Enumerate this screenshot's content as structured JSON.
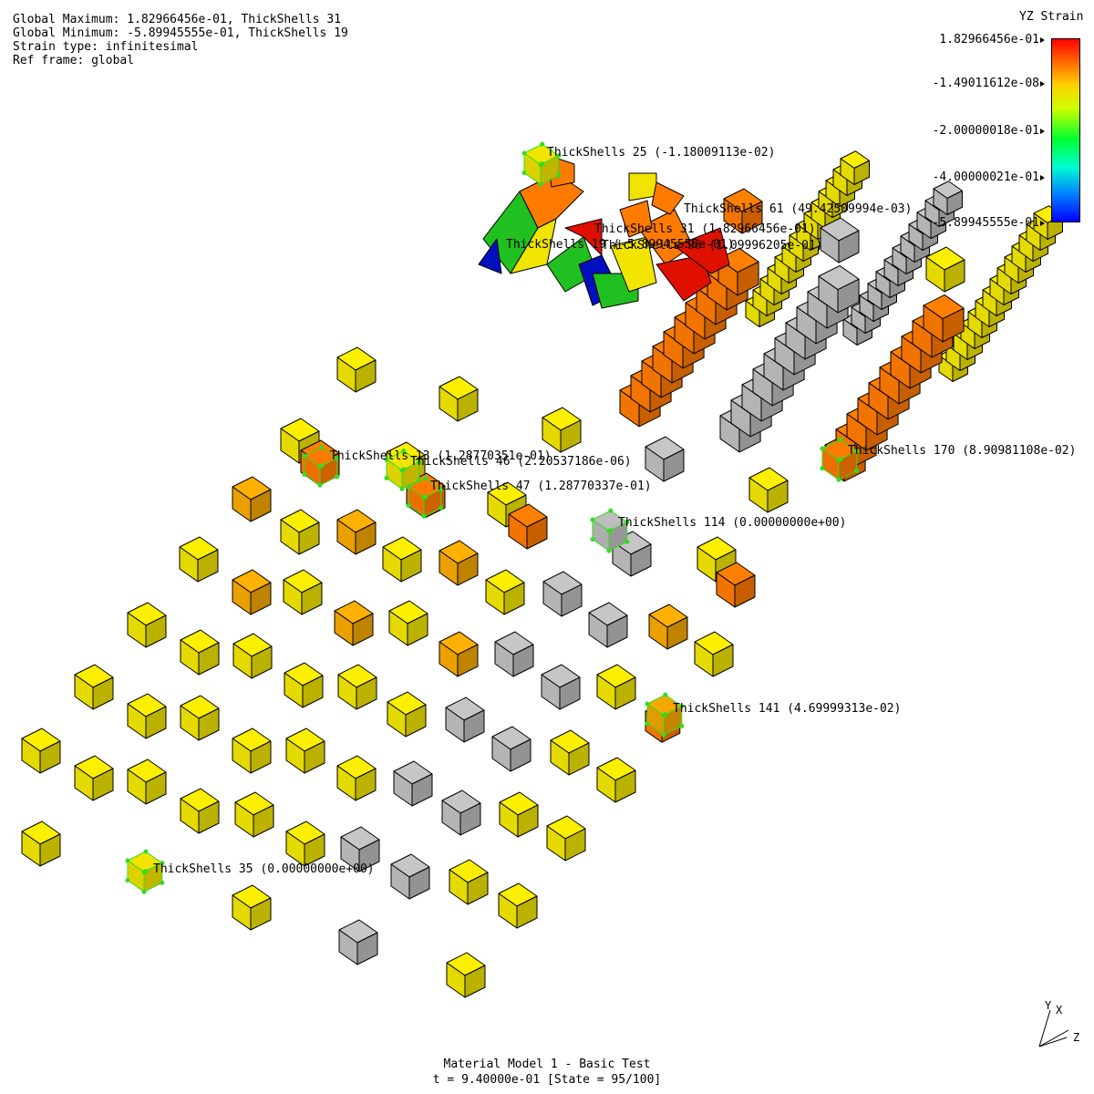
{
  "info": {
    "global_max": "Global Maximum: 1.82966456e-01, ThickShells 31",
    "global_min": "Global Minimum: -5.89945555e-01, ThickShells 19",
    "strain_type": "Strain type: infinitesimal",
    "ref_frame": "Ref frame: global"
  },
  "legend": {
    "title": "YZ Strain",
    "labels": [
      "1.82966456e-01",
      "-1.49011612e-08",
      "-2.00000018e-01",
      "-4.00000021e-01",
      "-5.89945555e-01"
    ]
  },
  "footer": {
    "title": "Material Model 1 - Basic Test",
    "state": "t = 9.40000e-01 [State = 95/100]"
  },
  "axes": {
    "y": "Y",
    "x": "X",
    "z": "Z"
  },
  "annotations": [
    "ThickShells 25 (-1.18009113e-02)",
    "ThickShells 61 (49.42509994e-03)",
    "ThickShells 31 (1.82966456e-01)",
    "ThickShells 19 (-5.89945555e-01)",
    "ThickShells 96 (1.09996205e-01)",
    "ThickShells 13 (1.28770351e-01)",
    "ThickShells 46 (2.20537186e-06)",
    "ThickShells 47 (1.28770337e-01)",
    "ThickShells 170 (8.90981108e-02)",
    "ThickShells 114 (0.00000000e+00)",
    "ThickShells 141 (4.69999313e-02)",
    "ThickShells 35 (0.00000000e+00)"
  ],
  "colors": {
    "yellow": "#f0e400",
    "orange": "#ff7a00",
    "amber": "#f5a800",
    "gray": "#bdbdbd",
    "red": "#e01000",
    "green": "#20c020",
    "blue": "#0010c0",
    "highlight": "#33dd22"
  }
}
